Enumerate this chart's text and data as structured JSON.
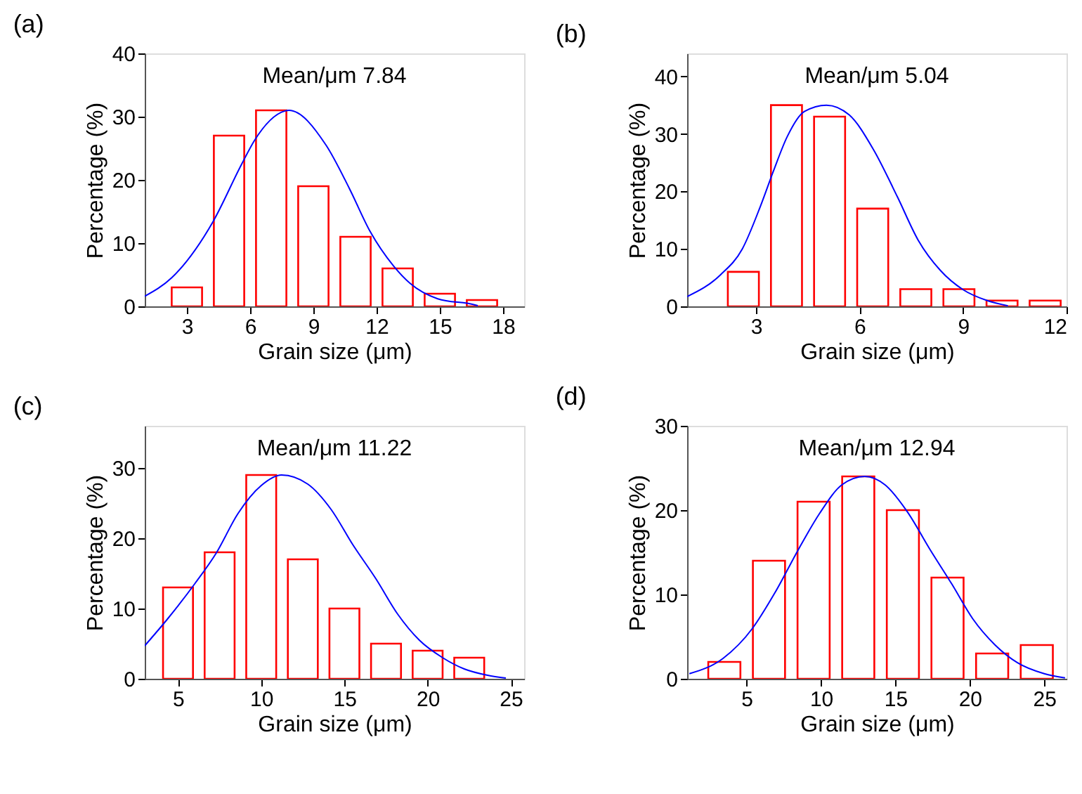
{
  "chart_data": [
    {
      "type": "bar",
      "title": "(a)",
      "xlabel": "Grain size (μm)",
      "ylabel": "Percentage (%)",
      "annotations": [
        "Mean/μm 7.84"
      ],
      "xlim": [
        1,
        19
      ],
      "xticks": [
        3,
        6,
        9,
        12,
        15,
        18
      ],
      "ylim": [
        0,
        40
      ],
      "yticks": [
        0,
        10,
        20,
        30,
        40
      ],
      "grid": false,
      "series": [
        {
          "color": "#ff0000",
          "x": [
            3,
            5,
            7,
            9,
            11,
            13,
            15,
            17
          ],
          "values": [
            3,
            27,
            31,
            19,
            11,
            6,
            2,
            1
          ]
        },
        {
          "type": "line",
          "color": "#0000ff",
          "x": [
            1,
            2.27,
            4.24,
            5.6,
            6.2,
            7.66,
            7.84,
            9.6,
            10.7,
            11.7,
            12.8,
            13.6,
            14.9,
            16.7,
            16.8
          ],
          "values": [
            1.6,
            4.5,
            13.4,
            22.5,
            26.2,
            30.9,
            31,
            25.5,
            18.7,
            11.8,
            6.4,
            3.6,
            1.2,
            0.2,
            0.1
          ]
        }
      ]
    },
    {
      "type": "bar",
      "title": "(b)",
      "xlabel": "Grain size (μm)",
      "ylabel": "Percentage (%)",
      "annotations": [
        "Mean/μm 5.04"
      ],
      "xlim": [
        1,
        12
      ],
      "xticks": [
        3,
        6,
        9,
        12
      ],
      "ylim": [
        0,
        44
      ],
      "yticks": [
        0,
        10,
        20,
        30,
        40
      ],
      "grid": false,
      "series": [
        {
          "color": "#ff0000",
          "x": [
            2.63,
            3.88,
            5.13,
            6.38,
            7.63,
            8.88,
            10.13,
            11.38
          ],
          "values": [
            6,
            35,
            33,
            17,
            3,
            3,
            1,
            1
          ]
        },
        {
          "type": "line",
          "color": "#0000ff",
          "x": [
            1,
            1.97,
            2.6,
            3.13,
            3.5,
            3.9,
            4.4,
            5.04,
            5.7,
            6.4,
            7.1,
            7.7,
            8.35,
            9.0,
            9.7,
            10.3
          ],
          "values": [
            1.7,
            5.5,
            10,
            17.5,
            23.5,
            29.5,
            33.9,
            35,
            33.3,
            27.3,
            19,
            11.5,
            6.2,
            2.9,
            1,
            0.1
          ]
        }
      ]
    },
    {
      "type": "bar",
      "title": "(c)",
      "xlabel": "Grain size (μm)",
      "ylabel": "Percentage (%)",
      "annotations": [
        "Mean/μm 11.22"
      ],
      "xlim": [
        3,
        25.8
      ],
      "xticks": [
        5,
        10,
        15,
        20,
        25
      ],
      "ylim": [
        0,
        36
      ],
      "yticks": [
        0,
        10,
        20,
        30
      ],
      "grid": false,
      "series": [
        {
          "color": "#ff0000",
          "x": [
            5,
            7.5,
            10,
            12.5,
            15,
            17.5,
            20,
            22.5
          ],
          "values": [
            13,
            18,
            29,
            17,
            10,
            5,
            4,
            3
          ]
        },
        {
          "type": "line",
          "color": "#0000ff",
          "x": [
            3,
            4.4,
            6.0,
            7.3,
            8.6,
            10,
            11.22,
            12.8,
            14.2,
            15.5,
            16.9,
            18.2,
            19.5,
            20.9,
            22.2,
            23.6,
            24.7
          ],
          "values": [
            4.7,
            8.6,
            13.5,
            17.9,
            23.5,
            27.5,
            29,
            27.7,
            24.1,
            19.1,
            14.2,
            9.2,
            5.5,
            3,
            1.4,
            0.5,
            0.1
          ]
        }
      ]
    },
    {
      "type": "bar",
      "title": "(d)",
      "xlabel": "Grain size (μm)",
      "ylabel": "Percentage (%)",
      "annotations": [
        "Mean/μm 12.94"
      ],
      "xlim": [
        1,
        26.5
      ],
      "xticks": [
        5,
        10,
        15,
        20,
        25
      ],
      "ylim": [
        0,
        30
      ],
      "yticks": [
        0,
        10,
        20,
        30
      ],
      "grid": false,
      "series": [
        {
          "color": "#ff0000",
          "x": [
            3.5,
            6.5,
            9.5,
            12.5,
            15.5,
            18.5,
            21.5,
            24.5
          ],
          "values": [
            2,
            14,
            21,
            24,
            20,
            12,
            3,
            4
          ]
        },
        {
          "type": "line",
          "color": "#0000ff",
          "x": [
            1.15,
            3.4,
            5.4,
            6.9,
            8.5,
            9.9,
            11.4,
            12.94,
            14.3,
            15.8,
            17.3,
            18.8,
            20.2,
            21.7,
            23.2,
            25,
            26.4
          ],
          "values": [
            0.6,
            2.4,
            6,
            10.2,
            15.4,
            19.6,
            23,
            24,
            23,
            19.8,
            15.4,
            11.2,
            7.1,
            4,
            1.9,
            0.6,
            0.1
          ]
        }
      ]
    }
  ]
}
